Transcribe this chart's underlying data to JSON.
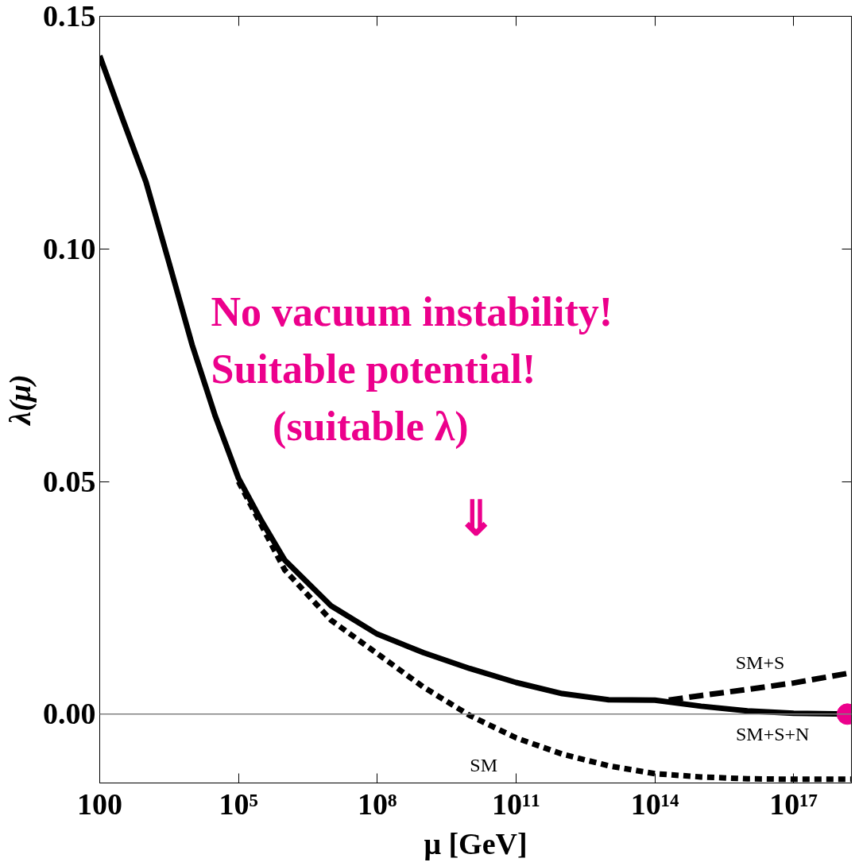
{
  "chart_data": {
    "type": "line",
    "xlabel": "μ [GeV]",
    "ylabel": "λ(μ)",
    "log": "x",
    "xlim": [
      100,
      1.78e+18
    ],
    "ylim": [
      -0.0148,
      0.15
    ],
    "xticks": [
      100,
      {
        "value": 100000.0,
        "label": "10⁵"
      },
      {
        "value": 100000000.0,
        "label": "10⁸"
      },
      {
        "value": 100000000000.0,
        "label": "10¹¹"
      },
      {
        "value": 100000000000000.0,
        "label": "10¹⁴"
      },
      {
        "value": 1e+17,
        "label": "10¹⁷"
      }
    ],
    "yticks": [
      {
        "value": 0,
        "label": "0.00"
      },
      0.05,
      {
        "value": 0.1,
        "label": "0.10"
      },
      0.15
    ],
    "grid": false,
    "ref_lines": [
      {
        "axis": "y",
        "value": 0,
        "color": "#808080"
      }
    ],
    "series": [
      {
        "name": "SM+S+N",
        "color": "#000000",
        "line_style": "solid",
        "x": [
          100,
          316,
          1000.0,
          3160,
          10000.0,
          31600,
          100000.0,
          316000,
          1000000.0,
          10000000.0,
          100000000.0,
          1000000000.0,
          10000000000.0,
          100000000000.0,
          1000000000000.0,
          10000000000000.0,
          100000000000000.0,
          1000000000000000.0,
          1e+16,
          1e+17,
          1.45e+18
        ],
        "values": [
          0.1415,
          0.1278,
          0.1144,
          0.097,
          0.0793,
          0.064,
          0.0507,
          0.0415,
          0.0331,
          0.0233,
          0.0172,
          0.0132,
          0.0098,
          0.0068,
          0.0044,
          0.0031,
          0.003,
          0.0017,
          0.0007,
          0.0002,
          0.0
        ]
      },
      {
        "name": "SM+S",
        "color": "#000000",
        "line_style": "dashed",
        "x": [
          200000000000000.0,
          1000000000000000.0,
          1e+16,
          1e+17,
          1.78e+18
        ],
        "values": [
          0.003,
          0.004,
          0.0053,
          0.0067,
          0.0089
        ]
      },
      {
        "name": "SM",
        "color": "#000000",
        "line_style": "dotted",
        "x": [
          100000.0,
          1000000.0,
          10000000.0,
          100000000.0,
          1000000000.0,
          10000000000.0,
          100000000000.0,
          1000000000000.0,
          10000000000000.0,
          100000000000000.0,
          1000000000000000.0,
          1e+16,
          1e+17,
          1.78e+18
        ],
        "values": [
          0.05,
          0.031,
          0.0202,
          0.013,
          0.0058,
          -0.0003,
          -0.0051,
          -0.0086,
          -0.0111,
          -0.0128,
          -0.0135,
          -0.0139,
          -0.014,
          -0.014
        ]
      },
      {
        "type": "scatter",
        "marker": "circle",
        "color": "#ec008c",
        "x": [
          1.45e+18
        ],
        "values": [
          0.0
        ]
      }
    ],
    "annotations": [
      "No vacuum instability!",
      "Suitable potential!",
      "(suitable λ)",
      "⇓"
    ]
  }
}
